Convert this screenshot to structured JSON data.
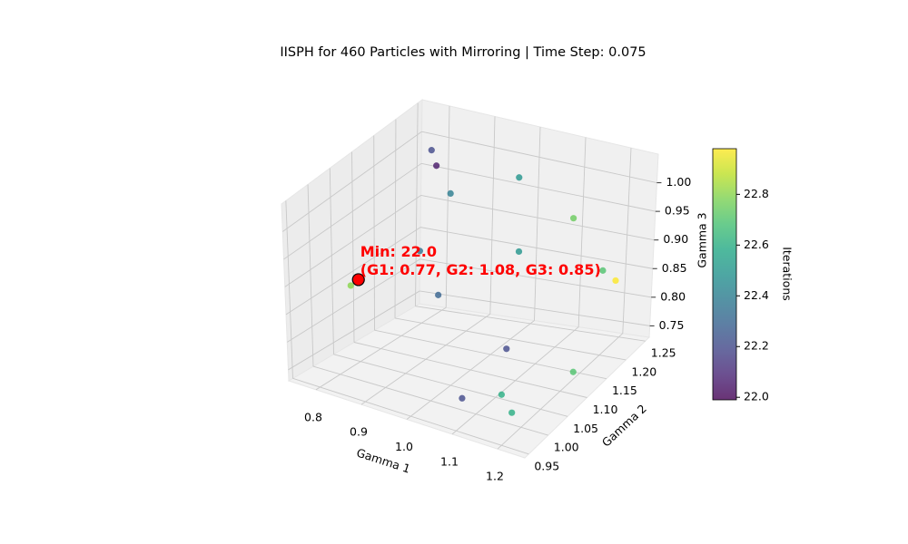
{
  "chart_data": {
    "type": "scatter3d",
    "title": "IISPH for 460 Particles with Mirroring | Time Step: 0.075",
    "x_label": "Gamma 1",
    "y_label": "Gamma 2",
    "z_label": "Gamma 3",
    "x": [
      0.8,
      0.83,
      0.89,
      1.05,
      1.18,
      1.07,
      1.22,
      1.24,
      0.86,
      0.91,
      0.8,
      1.08,
      1.22,
      1.07,
      1.14,
      1.18,
      0.77
    ],
    "y": [
      1.22,
      1.2,
      1.17,
      1.16,
      1.15,
      1.14,
      1.18,
      1.19,
      1.13,
      1.12,
      1.03,
      1.1,
      1.11,
      1.0,
      1.02,
      1.0,
      1.08
    ],
    "z": [
      1.0,
      0.99,
      0.97,
      1.03,
      0.99,
      0.92,
      0.89,
      0.87,
      0.89,
      0.83,
      0.87,
      0.78,
      0.76,
      0.75,
      0.76,
      0.75,
      0.85
    ],
    "color_values": [
      22.2,
      22.05,
      22.4,
      22.5,
      22.75,
      22.5,
      22.7,
      22.98,
      22.35,
      22.3,
      22.8,
      22.2,
      22.7,
      22.2,
      22.6,
      22.6,
      22.0
    ],
    "colormap": "viridis",
    "alpha": 0.8,
    "colorbar_label": "Iterations",
    "clim": [
      21.99,
      22.98
    ],
    "cticks": [
      {
        "value": 22,
        "label": "22.0"
      },
      22.2,
      22.4,
      22.6,
      22.8
    ],
    "xlim": [
      0.74,
      1.26
    ],
    "ylim": [
      0.94,
      1.26
    ],
    "zlim": [
      0.73,
      1.05
    ],
    "xticks": [
      0.8,
      0.9,
      {
        "value": 1,
        "label": "1.0"
      },
      1.1,
      1.2
    ],
    "yticks": [
      0.95,
      {
        "value": 1,
        "label": "1.00"
      },
      1.05,
      {
        "value": 1.1,
        "label": "1.10"
      },
      1.15,
      {
        "value": 1.2,
        "label": "1.20"
      },
      1.25
    ],
    "zticks": [
      0.75,
      {
        "value": 0.8,
        "label": "0.80"
      },
      0.85,
      {
        "value": 0.9,
        "label": "0.90"
      },
      0.95,
      {
        "value": 1,
        "label": "1.00"
      }
    ],
    "grid": true,
    "highlight_color": "red",
    "annotation": [
      "Min: 22.0",
      "(G1: 0.77, G2: 1.08, G3: 0.85)"
    ],
    "annotation_color": "red"
  }
}
